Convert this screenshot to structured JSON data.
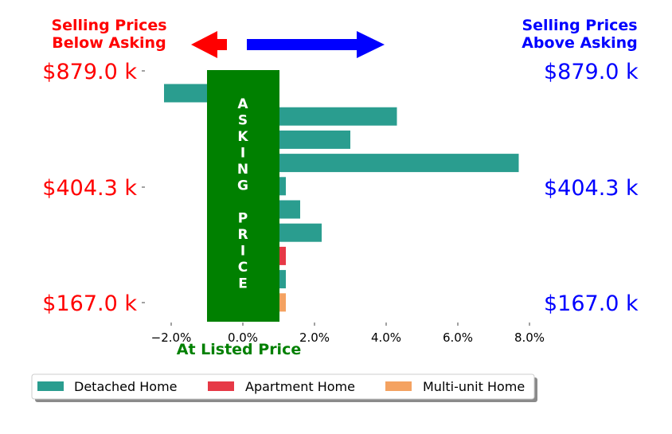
{
  "colors": {
    "detached": "#2a9d8f",
    "apartment": "#e63946",
    "multiunit": "#f4a261",
    "asking_band": "#008000",
    "below_text": "#ff0000",
    "above_text": "#0000ff",
    "below_arrow": "#ff0000",
    "above_arrow": "#0000ff"
  },
  "header": {
    "below_label_line1": "Selling Prices",
    "below_label_line2": "Below Asking",
    "above_label_line1": "Selling Prices",
    "above_label_line2": "Above Asking"
  },
  "band": {
    "letters": [
      "A",
      "S",
      "K",
      "I",
      "N",
      "G",
      "",
      "P",
      "R",
      "I",
      "C",
      "E"
    ],
    "xlabel": "At Listed Price"
  },
  "chart_data": {
    "type": "bar",
    "orientation": "horizontal",
    "xlim": [
      -0.026,
      0.084
    ],
    "x_ticks": [
      -0.02,
      0.0,
      0.02,
      0.04,
      0.06,
      0.08
    ],
    "x_tick_labels": [
      "−2.0%",
      "0.0%",
      "2.0%",
      "4.0%",
      "6.0%",
      "8.0%"
    ],
    "y_tick_labels_left": [
      "$879.0 k",
      "$404.3 k",
      "$167.0 k"
    ],
    "y_tick_labels_right": [
      "$879.0 k",
      "$404.3 k",
      "$167.0 k"
    ],
    "bars": [
      {
        "value": -0.022,
        "category": "Detached Home"
      },
      {
        "value": 0.043,
        "category": "Detached Home"
      },
      {
        "value": 0.03,
        "category": "Detached Home"
      },
      {
        "value": 0.077,
        "category": "Detached Home"
      },
      {
        "value": 0.012,
        "category": "Detached Home"
      },
      {
        "value": 0.016,
        "category": "Detached Home"
      },
      {
        "value": 0.022,
        "category": "Detached Home"
      },
      {
        "value": 0.012,
        "category": "Apartment Home"
      },
      {
        "value": 0.012,
        "category": "Detached Home"
      },
      {
        "value": 0.012,
        "category": "Multi-unit Home"
      }
    ],
    "legend": {
      "position": "bottom",
      "entries": [
        {
          "label": "Detached Home",
          "color": "#2a9d8f"
        },
        {
          "label": "Apartment Home",
          "color": "#e63946"
        },
        {
          "label": "Multi-unit Home",
          "color": "#f4a261"
        }
      ]
    },
    "grid": false
  }
}
